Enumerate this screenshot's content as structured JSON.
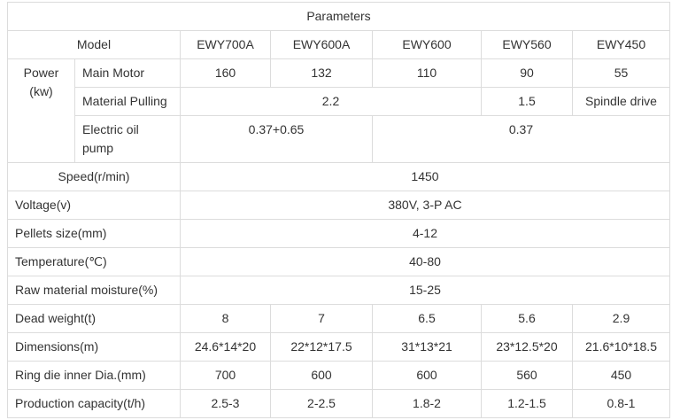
{
  "title": "Parameters",
  "model_row": {
    "label": "Model",
    "models": [
      "EWY700A",
      "EWY600A",
      "EWY600",
      "EWY560",
      "EWY450"
    ]
  },
  "power": {
    "label": "Power (kw)",
    "main_motor": {
      "label": "Main Motor",
      "values": [
        "160",
        "132",
        "110",
        "90",
        "55"
      ]
    },
    "material_pulling": {
      "label": "Material Pulling",
      "values": [
        "2.2",
        "1.5",
        "Spindle drive"
      ]
    },
    "electric_oil_pump": {
      "label": "Electric oil pump",
      "values": [
        "0.37+0.65",
        "0.37"
      ]
    }
  },
  "rows": [
    {
      "label": "Speed(r/min)",
      "values": [
        "1450"
      ]
    },
    {
      "label": "Voltage(v)",
      "values": [
        "380V, 3-P AC"
      ]
    },
    {
      "label": "Pellets size(mm)",
      "values": [
        "4-12"
      ]
    },
    {
      "label": "Temperature(℃)",
      "values": [
        "40-80"
      ]
    },
    {
      "label": "Raw material moisture(%)",
      "values": [
        "15-25"
      ]
    },
    {
      "label": "Dead weight(t)",
      "values": [
        "8",
        "7",
        "6.5",
        "5.6",
        "2.9"
      ]
    },
    {
      "label": "Dimensions(m)",
      "values": [
        "24.6*14*20",
        "22*12*17.5",
        "31*13*21",
        "23*12.5*20",
        "21.6*10*18.5"
      ]
    },
    {
      "label": "Ring die inner Dia.(mm)",
      "values": [
        "700",
        "600",
        "600",
        "560",
        "450"
      ]
    },
    {
      "label": "Production capacity(t/h)",
      "values": [
        "2.5-3",
        "2-2.5",
        "1.8-2",
        "1.2-1.5",
        "0.8-1"
      ]
    }
  ]
}
